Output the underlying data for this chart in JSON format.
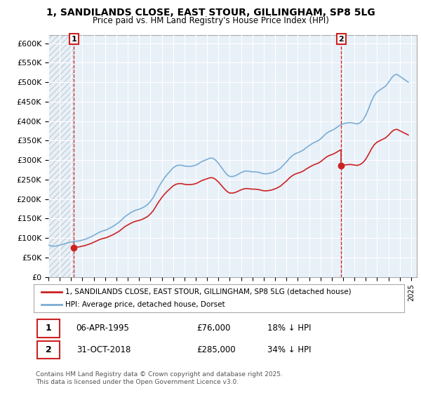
{
  "title": "1, SANDILANDS CLOSE, EAST STOUR, GILLINGHAM, SP8 5LG",
  "subtitle": "Price paid vs. HM Land Registry's House Price Index (HPI)",
  "ylim": [
    0,
    620000
  ],
  "yticks": [
    0,
    50000,
    100000,
    150000,
    200000,
    250000,
    300000,
    350000,
    400000,
    450000,
    500000,
    550000,
    600000
  ],
  "ytick_labels": [
    "£0",
    "£50K",
    "£100K",
    "£150K",
    "£200K",
    "£250K",
    "£300K",
    "£350K",
    "£400K",
    "£450K",
    "£500K",
    "£550K",
    "£600K"
  ],
  "xlim_start": 1993.0,
  "xlim_end": 2025.5,
  "sale1_x": 1995.25,
  "sale1_y": 76000,
  "sale1_label": "06-APR-1995",
  "sale1_price": "£76,000",
  "sale1_hpi": "18% ↓ HPI",
  "sale2_x": 2018.83,
  "sale2_y": 285000,
  "sale2_label": "31-OCT-2018",
  "sale2_price": "£285,000",
  "sale2_hpi": "34% ↓ HPI",
  "hpi_color": "#7aadd4",
  "price_color": "#cc2222",
  "plot_bg": "#e8f0f8",
  "hatch_color": "#c8d0d8",
  "legend_label_price": "1, SANDILANDS CLOSE, EAST STOUR, GILLINGHAM, SP8 5LG (detached house)",
  "legend_label_hpi": "HPI: Average price, detached house, Dorset",
  "footer": "Contains HM Land Registry data © Crown copyright and database right 2025.\nThis data is licensed under the Open Government Licence v3.0.",
  "hpi_data_x": [
    1993.0,
    1993.25,
    1993.5,
    1993.75,
    1994.0,
    1994.25,
    1994.5,
    1994.75,
    1995.0,
    1995.25,
    1995.5,
    1995.75,
    1996.0,
    1996.25,
    1996.5,
    1996.75,
    1997.0,
    1997.25,
    1997.5,
    1997.75,
    1998.0,
    1998.25,
    1998.5,
    1998.75,
    1999.0,
    1999.25,
    1999.5,
    1999.75,
    2000.0,
    2000.25,
    2000.5,
    2000.75,
    2001.0,
    2001.25,
    2001.5,
    2001.75,
    2002.0,
    2002.25,
    2002.5,
    2002.75,
    2003.0,
    2003.25,
    2003.5,
    2003.75,
    2004.0,
    2004.25,
    2004.5,
    2004.75,
    2005.0,
    2005.25,
    2005.5,
    2005.75,
    2006.0,
    2006.25,
    2006.5,
    2006.75,
    2007.0,
    2007.25,
    2007.5,
    2007.75,
    2008.0,
    2008.25,
    2008.5,
    2008.75,
    2009.0,
    2009.25,
    2009.5,
    2009.75,
    2010.0,
    2010.25,
    2010.5,
    2010.75,
    2011.0,
    2011.25,
    2011.5,
    2011.75,
    2012.0,
    2012.25,
    2012.5,
    2012.75,
    2013.0,
    2013.25,
    2013.5,
    2013.75,
    2014.0,
    2014.25,
    2014.5,
    2014.75,
    2015.0,
    2015.25,
    2015.5,
    2015.75,
    2016.0,
    2016.25,
    2016.5,
    2016.75,
    2017.0,
    2017.25,
    2017.5,
    2017.75,
    2018.0,
    2018.25,
    2018.5,
    2018.75,
    2019.0,
    2019.25,
    2019.5,
    2019.75,
    2020.0,
    2020.25,
    2020.5,
    2020.75,
    2021.0,
    2021.25,
    2021.5,
    2021.75,
    2022.0,
    2022.25,
    2022.5,
    2022.75,
    2023.0,
    2023.25,
    2023.5,
    2023.75,
    2024.0,
    2024.25,
    2024.5,
    2024.75
  ],
  "hpi_data_y": [
    82000,
    80000,
    79000,
    80000,
    82000,
    84000,
    86000,
    88000,
    90000,
    91000,
    92000,
    93000,
    95000,
    97000,
    100000,
    103000,
    107000,
    111000,
    115000,
    118000,
    120000,
    123000,
    127000,
    131000,
    136000,
    141000,
    148000,
    155000,
    160000,
    165000,
    169000,
    172000,
    174000,
    177000,
    181000,
    186000,
    194000,
    204000,
    218000,
    232000,
    244000,
    255000,
    264000,
    272000,
    280000,
    285000,
    287000,
    287000,
    285000,
    284000,
    284000,
    285000,
    287000,
    291000,
    296000,
    299000,
    302000,
    305000,
    305000,
    300000,
    292000,
    282000,
    272000,
    263000,
    258000,
    258000,
    260000,
    264000,
    268000,
    271000,
    272000,
    271000,
    270000,
    270000,
    269000,
    267000,
    265000,
    265000,
    266000,
    268000,
    271000,
    275000,
    280000,
    288000,
    295000,
    304000,
    311000,
    316000,
    319000,
    322000,
    326000,
    332000,
    337000,
    342000,
    346000,
    349000,
    354000,
    361000,
    368000,
    373000,
    376000,
    380000,
    385000,
    390000,
    393000,
    395000,
    396000,
    396000,
    394000,
    393000,
    396000,
    403000,
    415000,
    432000,
    451000,
    466000,
    475000,
    480000,
    485000,
    490000,
    499000,
    510000,
    518000,
    520000,
    515000,
    510000,
    505000,
    500000
  ]
}
